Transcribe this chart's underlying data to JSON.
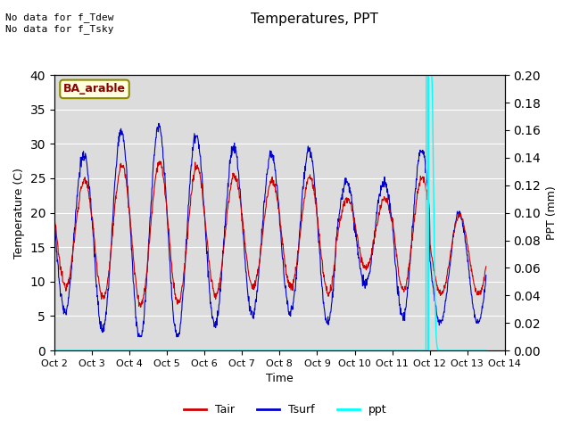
{
  "title": "Temperatures, PPT",
  "xlabel": "Time",
  "ylabel_left": "Temperature (C)",
  "ylabel_right": "PPT (mm)",
  "annotation_text": "No data for f_Tdew\nNo data for f_Tsky",
  "box_label": "BA_arable",
  "xlim": [
    2,
    14
  ],
  "ylim_left": [
    0,
    40
  ],
  "ylim_right": [
    0,
    0.2
  ],
  "yticks_left": [
    0,
    5,
    10,
    15,
    20,
    25,
    30,
    35,
    40
  ],
  "yticks_right": [
    0.0,
    0.02,
    0.04,
    0.06,
    0.08,
    0.1,
    0.12,
    0.14,
    0.16,
    0.18,
    0.2
  ],
  "xtick_positions": [
    2,
    3,
    4,
    5,
    6,
    7,
    8,
    9,
    10,
    11,
    12,
    13,
    14
  ],
  "xtick_labels": [
    "Oct 2",
    "Oct 3",
    "Oct 4",
    "Oct 5",
    "Oct 6",
    "Oct 7",
    "Oct 8",
    "Oct 9",
    "Oct 10",
    "Oct 11",
    "Oct 12",
    "Oct 13",
    "Oct 14"
  ],
  "vline_day": 11.97,
  "vline_color": "cyan",
  "tair_color": "#cc0000",
  "tsurf_color": "#0000cc",
  "ppt_color": "cyan",
  "background_color": "#dcdcdc",
  "grid_color": "#ffffff",
  "legend_labels": [
    "Tair",
    "Tsurf",
    "ppt"
  ],
  "legend_colors": [
    "#cc0000",
    "#0000cc",
    "cyan"
  ]
}
